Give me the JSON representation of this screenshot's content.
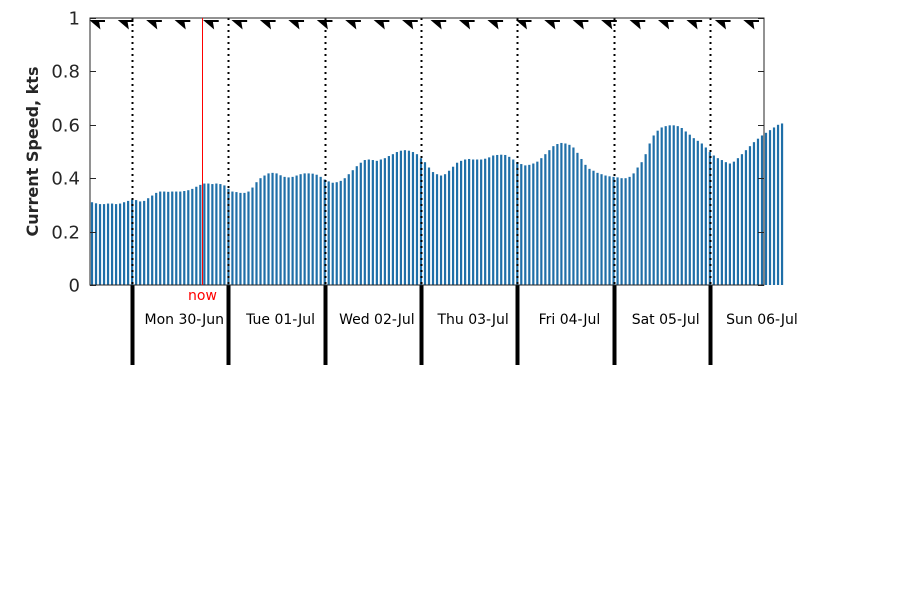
{
  "chart_data": {
    "type": "bar",
    "ylabel": "Current Speed, kts",
    "ylim": [
      0,
      1
    ],
    "yticks": [
      0,
      0.2,
      0.4,
      0.6,
      0.8,
      1
    ],
    "ytick_labels": [
      "0",
      "0.2",
      "0.4",
      "0.6",
      "0.8",
      "1"
    ],
    "x_range_hours": [
      -10.5,
      157.5
    ],
    "bar_color": "#1f6fa8",
    "grid": false,
    "days": [
      {
        "label": "Mon 30-Jun",
        "start_hour": 0
      },
      {
        "label": "Tue 01-Jul",
        "start_hour": 24
      },
      {
        "label": "Wed 02-Jul",
        "start_hour": 48
      },
      {
        "label": "Thu 03-Jul",
        "start_hour": 72
      },
      {
        "label": "Fri 04-Jul",
        "start_hour": 96
      },
      {
        "label": "Sat 05-Jul",
        "start_hour": 120
      },
      {
        "label": "Sun 06-Jul",
        "start_hour": 144
      }
    ],
    "now": {
      "label": "now",
      "hour": 17.5,
      "color": "#ff0000"
    },
    "direction_arrow_count": 24,
    "series": [
      {
        "interval_hours": 1,
        "start_hour": -10,
        "values": [
          0.31,
          0.306,
          0.303,
          0.303,
          0.305,
          0.305,
          0.303,
          0.305,
          0.31,
          0.315,
          0.32,
          0.318,
          0.313,
          0.315,
          0.325,
          0.335,
          0.345,
          0.35,
          0.35,
          0.349,
          0.35,
          0.35,
          0.35,
          0.352,
          0.355,
          0.36,
          0.368,
          0.375,
          0.38,
          0.38,
          0.378,
          0.38,
          0.378,
          0.373,
          0.36,
          0.35,
          0.348,
          0.345,
          0.345,
          0.35,
          0.365,
          0.385,
          0.4,
          0.41,
          0.418,
          0.42,
          0.418,
          0.411,
          0.405,
          0.403,
          0.405,
          0.41,
          0.415,
          0.418,
          0.418,
          0.417,
          0.413,
          0.405,
          0.395,
          0.388,
          0.383,
          0.385,
          0.39,
          0.4,
          0.415,
          0.43,
          0.445,
          0.458,
          0.468,
          0.47,
          0.468,
          0.465,
          0.47,
          0.475,
          0.483,
          0.49,
          0.498,
          0.503,
          0.505,
          0.503,
          0.498,
          0.49,
          0.475,
          0.46,
          0.44,
          0.423,
          0.415,
          0.41,
          0.415,
          0.428,
          0.443,
          0.458,
          0.465,
          0.47,
          0.472,
          0.47,
          0.47,
          0.47,
          0.473,
          0.478,
          0.485,
          0.487,
          0.488,
          0.487,
          0.48,
          0.47,
          0.46,
          0.453,
          0.448,
          0.45,
          0.455,
          0.462,
          0.475,
          0.49,
          0.505,
          0.52,
          0.528,
          0.532,
          0.53,
          0.525,
          0.515,
          0.495,
          0.472,
          0.45,
          0.435,
          0.428,
          0.42,
          0.415,
          0.41,
          0.407,
          0.405,
          0.403,
          0.4,
          0.4,
          0.405,
          0.418,
          0.44,
          0.46,
          0.49,
          0.53,
          0.56,
          0.578,
          0.59,
          0.595,
          0.598,
          0.598,
          0.595,
          0.588,
          0.575,
          0.563,
          0.55,
          0.54,
          0.53,
          0.515,
          0.498,
          0.485,
          0.475,
          0.468,
          0.46,
          0.455,
          0.462,
          0.475,
          0.49,
          0.505,
          0.52,
          0.535,
          0.548,
          0.56,
          0.57,
          0.58,
          0.59,
          0.6,
          0.605
        ]
      }
    ]
  }
}
